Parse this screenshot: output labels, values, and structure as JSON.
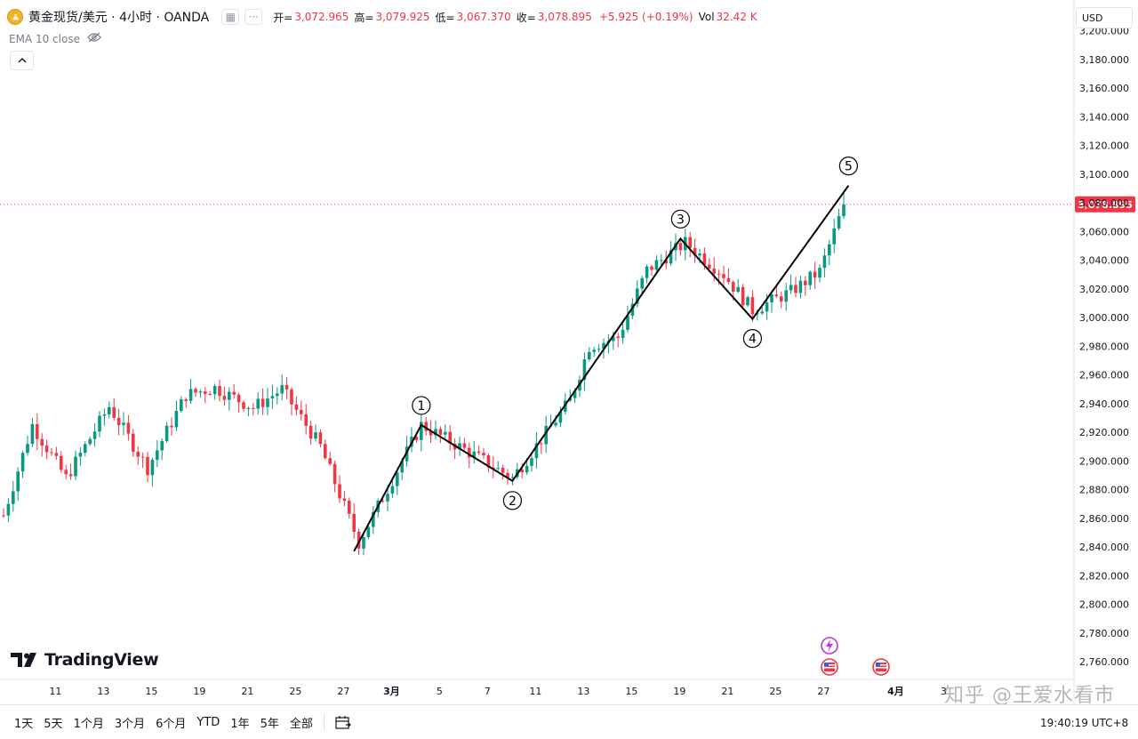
{
  "header": {
    "symbol_title": "黄金现货/美元 · 4小时 · OANDA",
    "ohlc": [
      {
        "key": "开=",
        "value": "3,072.965"
      },
      {
        "key": "高=",
        "value": "3,079.925"
      },
      {
        "key": "低=",
        "value": "3,067.370"
      },
      {
        "key": "收=",
        "value": "3,078.895"
      },
      {
        "key": "",
        "value": "+5.925 (+0.19%)"
      },
      {
        "key": "Vol",
        "value": "32.42 K"
      }
    ],
    "indicator_label": "EMA 10 close",
    "currency": "USD"
  },
  "branding": {
    "logo_text": "TradingView"
  },
  "watermark": "知乎 @王爱水看市",
  "timeframes": [
    "1天",
    "5天",
    "1个月",
    "3个月",
    "6个月",
    "YTD",
    "1年",
    "5年",
    "全部"
  ],
  "clock": "19:40:19 UTC+8",
  "colors": {
    "up": "#089981",
    "down": "#f23645",
    "last_price": "#f23645",
    "wave": "#000000"
  },
  "chart_data": {
    "type": "candlestick",
    "y_ticks": [
      2760,
      2780,
      2800,
      2820,
      2840,
      2860,
      2880,
      2900,
      2920,
      2940,
      2960,
      2980,
      3000,
      3020,
      3040,
      3060,
      3080,
      3100,
      3120,
      3140,
      3160,
      3180,
      3200
    ],
    "y_tick_labels": [
      "2,760.000",
      "2,780.000",
      "2,800.000",
      "2,820.000",
      "2,840.000",
      "2,860.000",
      "2,880.000",
      "2,900.000",
      "2,920.000",
      "2,940.000",
      "2,960.000",
      "2,980.000",
      "3,000.000",
      "3,020.000",
      "3,040.000",
      "3,060.000",
      "3,080.000",
      "3,100.000",
      "3,120.000",
      "3,140.000",
      "3,160.000",
      "3,180.000",
      "3,200.000"
    ],
    "x_ticks": [
      {
        "label": "11",
        "bar": 6
      },
      {
        "label": "13",
        "bar": 16
      },
      {
        "label": "15",
        "bar": 26
      },
      {
        "label": "19",
        "bar": 36
      },
      {
        "label": "21",
        "bar": 46
      },
      {
        "label": "25",
        "bar": 56
      },
      {
        "label": "27",
        "bar": 66
      },
      {
        "label": "3月",
        "bar": 76
      },
      {
        "label": "5",
        "bar": 86
      },
      {
        "label": "7",
        "bar": 96
      },
      {
        "label": "11",
        "bar": 106
      },
      {
        "label": "13",
        "bar": 116
      },
      {
        "label": "15",
        "bar": 126
      },
      {
        "label": "19",
        "bar": 136
      },
      {
        "label": "21",
        "bar": 146
      },
      {
        "label": "25",
        "bar": 156
      },
      {
        "label": "27",
        "bar": 166
      },
      {
        "label": "4月",
        "bar": 181
      },
      {
        "label": "3",
        "bar": 191
      }
    ],
    "last_price": 3078.895,
    "last_price_label": "3,078.895",
    "anchors": [
      {
        "bar": 0,
        "price": 2862
      },
      {
        "bar": 6,
        "price": 2925
      },
      {
        "bar": 13,
        "price": 2888
      },
      {
        "bar": 22,
        "price": 2938
      },
      {
        "bar": 30,
        "price": 2895
      },
      {
        "bar": 38,
        "price": 2946
      },
      {
        "bar": 44,
        "price": 2951
      },
      {
        "bar": 52,
        "price": 2937
      },
      {
        "bar": 58,
        "price": 2950
      },
      {
        "bar": 66,
        "price": 2910
      },
      {
        "bar": 74,
        "price": 2843
      },
      {
        "bar": 87,
        "price": 2925
      },
      {
        "bar": 96,
        "price": 2908
      },
      {
        "bar": 106,
        "price": 2888
      },
      {
        "bar": 118,
        "price": 2942
      },
      {
        "bar": 122,
        "price": 2980
      },
      {
        "bar": 128,
        "price": 2986
      },
      {
        "bar": 134,
        "price": 3033
      },
      {
        "bar": 142,
        "price": 3052
      },
      {
        "bar": 150,
        "price": 3030
      },
      {
        "bar": 156,
        "price": 3005
      },
      {
        "bar": 164,
        "price": 3018
      },
      {
        "bar": 170,
        "price": 3032
      },
      {
        "bar": 175,
        "price": 3078
      }
    ],
    "waves": [
      {
        "label": "1",
        "bar": 87,
        "price": 2925,
        "label_pos": "above"
      },
      {
        "label": "2",
        "bar": 106,
        "price": 2886,
        "label_pos": "below"
      },
      {
        "label": "3",
        "bar": 141,
        "price": 3055,
        "label_pos": "above"
      },
      {
        "label": "4",
        "bar": 156,
        "price": 2999,
        "label_pos": "below"
      },
      {
        "label": "5",
        "bar": 176,
        "price": 3092,
        "label_pos": "above"
      }
    ],
    "wave_start": {
      "bar": 73,
      "price": 2837
    }
  }
}
